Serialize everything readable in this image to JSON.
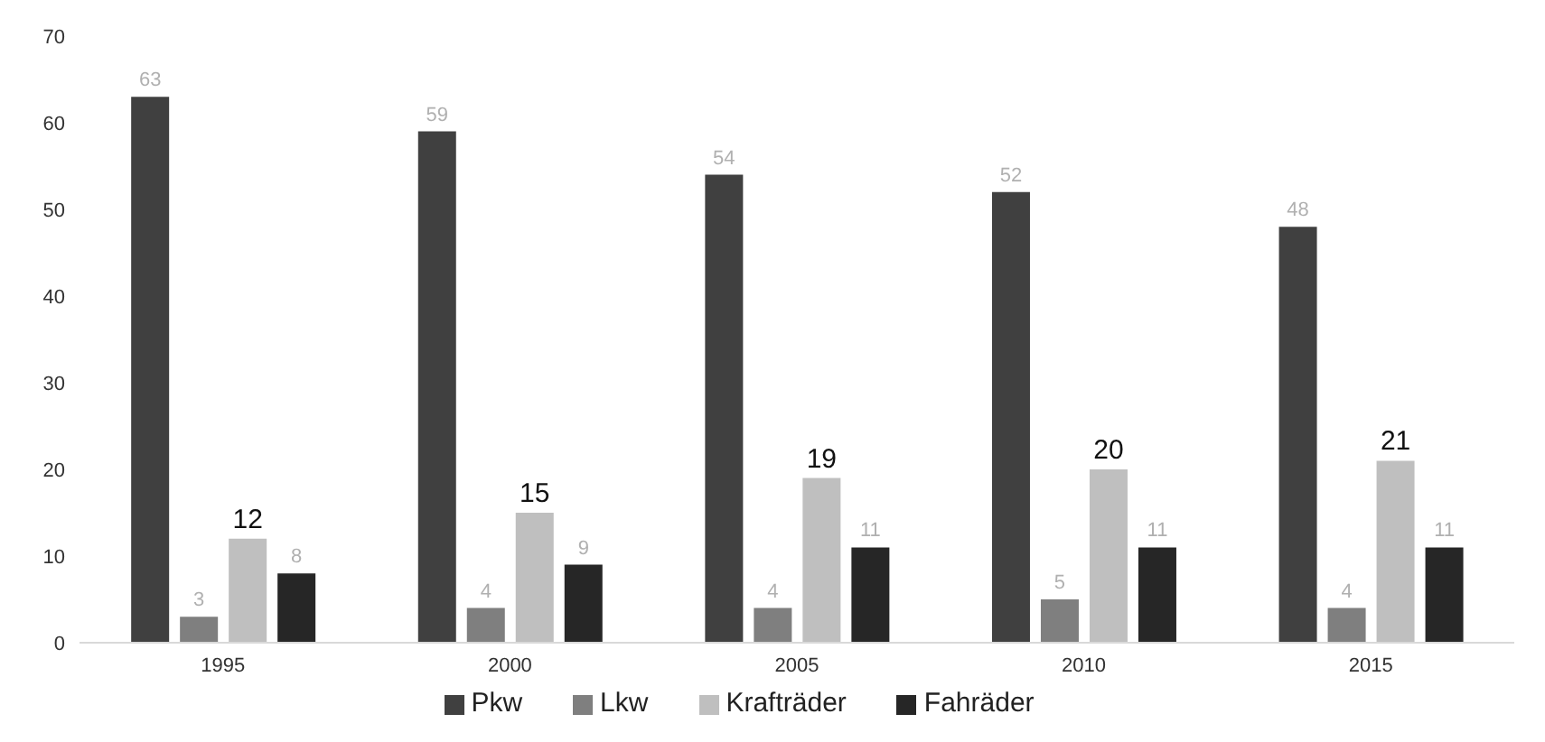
{
  "chart_data": {
    "type": "bar",
    "categories": [
      "1995",
      "2000",
      "2005",
      "2010",
      "2015"
    ],
    "series": [
      {
        "name": "Pkw",
        "color": "#404040",
        "values": [
          63,
          59,
          54,
          52,
          48
        ]
      },
      {
        "name": "Lkw",
        "color": "#7f7f7f",
        "values": [
          3,
          4,
          4,
          5,
          4
        ]
      },
      {
        "name": "Krafträder",
        "color": "#bfbfbf",
        "values": [
          12,
          15,
          19,
          20,
          21
        ]
      },
      {
        "name": "Fahräder",
        "color": "#262626",
        "values": [
          8,
          9,
          11,
          11,
          11
        ]
      }
    ],
    "ylim": [
      0,
      70
    ],
    "yticks": [
      0,
      10,
      20,
      30,
      40,
      50,
      60,
      70
    ],
    "grid": false,
    "legend": "bottom",
    "data_labels": true
  }
}
